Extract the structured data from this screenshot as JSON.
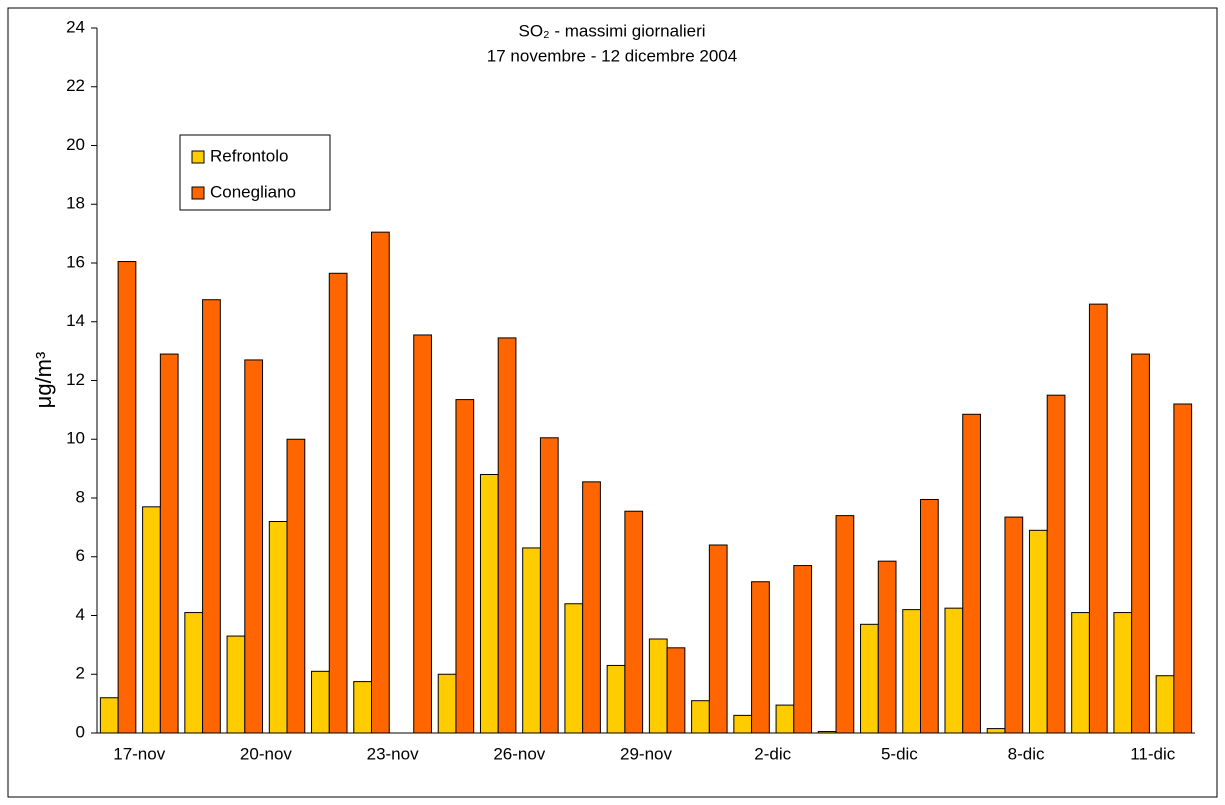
{
  "chart_data": {
    "type": "bar",
    "title": "SO₂ - massimi giornalieri",
    "subtitle": "17 novembre - 12 dicembre 2004",
    "y_label": "μg/m³",
    "categories": [
      "17-nov",
      null,
      null,
      "20-nov",
      null,
      null,
      "23-nov",
      null,
      null,
      "26-nov",
      null,
      null,
      "29-nov",
      null,
      null,
      "2-dic",
      null,
      null,
      "5-dic",
      null,
      null,
      "8-dic",
      null,
      null,
      "11-dic",
      null
    ],
    "series": [
      {
        "name": "Refrontolo",
        "color": "#FFCC00",
        "values": [
          1.2,
          7.7,
          4.1,
          3.3,
          7.2,
          2.1,
          1.75,
          null,
          2.0,
          8.8,
          6.3,
          4.4,
          2.3,
          3.2,
          1.1,
          0.6,
          0.95,
          0.05,
          3.7,
          4.2,
          4.25,
          0.15,
          6.9,
          4.1,
          4.1,
          1.95
        ]
      },
      {
        "name": "Conegliano",
        "color": "#FF6600",
        "values": [
          16.05,
          12.9,
          14.75,
          12.7,
          10.0,
          15.65,
          17.05,
          13.55,
          11.35,
          13.45,
          10.05,
          8.55,
          7.55,
          2.9,
          6.4,
          5.15,
          5.7,
          7.4,
          5.85,
          7.95,
          10.85,
          7.35,
          11.5,
          14.6,
          12.9,
          11.2
        ]
      }
    ],
    "ylim": [
      0,
      24
    ],
    "yticks": [
      0,
      2,
      4,
      6,
      8,
      10,
      12,
      14,
      16,
      18,
      20,
      22,
      24
    ],
    "grid": false,
    "legend": "upper-left"
  }
}
